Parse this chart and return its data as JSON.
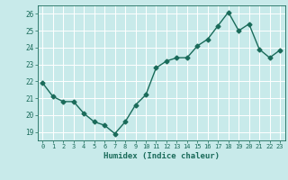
{
  "x": [
    0,
    1,
    2,
    3,
    4,
    5,
    6,
    7,
    8,
    9,
    10,
    11,
    12,
    13,
    14,
    15,
    16,
    17,
    18,
    19,
    20,
    21,
    22,
    23
  ],
  "y": [
    21.9,
    21.1,
    20.8,
    20.8,
    20.1,
    19.6,
    19.4,
    18.9,
    19.6,
    20.6,
    21.2,
    22.8,
    23.2,
    23.4,
    23.4,
    24.1,
    24.5,
    25.3,
    26.1,
    25.0,
    25.4,
    23.9,
    23.4,
    23.85
  ],
  "line_color": "#1a6b5a",
  "bg_color": "#c8eaea",
  "grid_color": "#ffffff",
  "xlabel": "Humidex (Indice chaleur)",
  "ylim": [
    18.5,
    26.5
  ],
  "yticks": [
    19,
    20,
    21,
    22,
    23,
    24,
    25,
    26
  ],
  "xtick_labels": [
    "0",
    "1",
    "2",
    "3",
    "4",
    "5",
    "6",
    "7",
    "8",
    "9",
    "10",
    "11",
    "12",
    "13",
    "14",
    "15",
    "16",
    "17",
    "18",
    "19",
    "20",
    "21",
    "22",
    "23"
  ],
  "tick_color": "#1a6b5a",
  "label_color": "#1a6b5a",
  "marker_size": 2.5,
  "linewidth": 1.0
}
